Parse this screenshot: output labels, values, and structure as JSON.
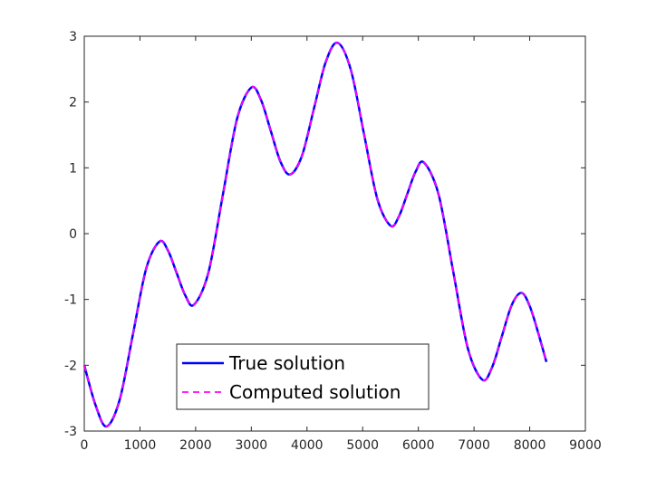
{
  "chart_data": {
    "type": "line",
    "x": [
      0,
      200,
      400,
      637.5,
      875,
      1112.5,
      1350,
      1505,
      1660,
      1815,
      1970,
      2227.5,
      2485,
      2742.5,
      3000,
      3175,
      3350,
      3525,
      3700,
      3912.5,
      4125,
      4337.5,
      4550,
      4787.5,
      5025,
      5262.5,
      5500,
      5650,
      5800,
      5950,
      6100,
      6362.5,
      6625,
      6887.5,
      7150,
      7325,
      7500,
      7675,
      7850,
      8000,
      8150,
      8300
    ],
    "series": [
      {
        "name": "True solution",
        "color": "#0000ff",
        "style": "solid",
        "values": [
          -2.0,
          -2.6,
          -2.93,
          -2.52,
          -1.525,
          -0.53,
          -0.12,
          -0.26,
          -0.6,
          -0.94,
          -1.08,
          -0.6,
          0.57,
          1.74,
          2.22,
          2.03,
          1.56,
          1.09,
          0.9,
          1.19,
          1.9,
          2.61,
          2.9,
          2.49,
          1.51,
          0.53,
          0.12,
          0.26,
          0.6,
          0.94,
          1.08,
          0.6,
          -0.57,
          -1.74,
          -2.22,
          -2.03,
          -1.56,
          -1.09,
          -0.9,
          -1.1,
          -1.5,
          -1.95
        ]
      },
      {
        "name": "Computed solution",
        "color": "#ff00ff",
        "style": "dashed",
        "values": [
          -2.0,
          -2.6,
          -2.93,
          -2.52,
          -1.525,
          -0.53,
          -0.12,
          -0.26,
          -0.6,
          -0.94,
          -1.08,
          -0.6,
          0.57,
          1.74,
          2.22,
          2.03,
          1.56,
          1.09,
          0.9,
          1.19,
          1.9,
          2.61,
          2.9,
          2.49,
          1.51,
          0.53,
          0.12,
          0.26,
          0.6,
          0.94,
          1.08,
          0.6,
          -0.57,
          -1.74,
          -2.22,
          -2.03,
          -1.56,
          -1.09,
          -0.9,
          -1.1,
          -1.5,
          -1.95
        ]
      }
    ],
    "xlim": [
      0,
      9000
    ],
    "xticks": [
      0,
      1000,
      2000,
      3000,
      4000,
      5000,
      6000,
      7000,
      8000,
      9000
    ],
    "ylim": [
      -3,
      3
    ],
    "yticks": [
      -3,
      -2,
      -1,
      0,
      1,
      2,
      3
    ],
    "grid": false,
    "legend": "south-west"
  }
}
